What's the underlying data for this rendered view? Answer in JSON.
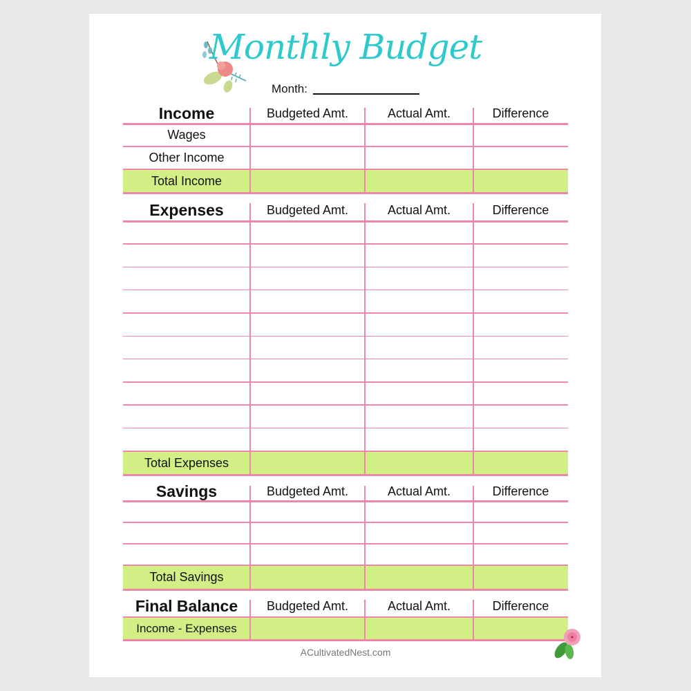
{
  "title": "Monthly Budget",
  "month_label": "Month:",
  "month_value": "",
  "columns": [
    "Budgeted Amt.",
    "Actual Amt.",
    "Difference"
  ],
  "sections": [
    {
      "id": "income",
      "header": "Income",
      "rows": [
        "Wages",
        "Other Income"
      ],
      "total": "Total Income"
    },
    {
      "id": "expenses",
      "header": "Expenses",
      "rows": [
        "",
        "",
        "",
        "",
        "",
        "",
        "",
        "",
        "",
        ""
      ],
      "total": "Total Expenses"
    },
    {
      "id": "savings",
      "header": "Savings",
      "rows": [
        "",
        "",
        ""
      ],
      "total": "Total Savings"
    },
    {
      "id": "final-balance",
      "header": "Final Balance",
      "rows": [],
      "total": "Income - Expenses"
    }
  ],
  "footer": "ACultivatedNest.com",
  "colors": {
    "title": "#2ec9cc",
    "grid": "#ee86a8",
    "total_fill": "#d2ef85"
  }
}
